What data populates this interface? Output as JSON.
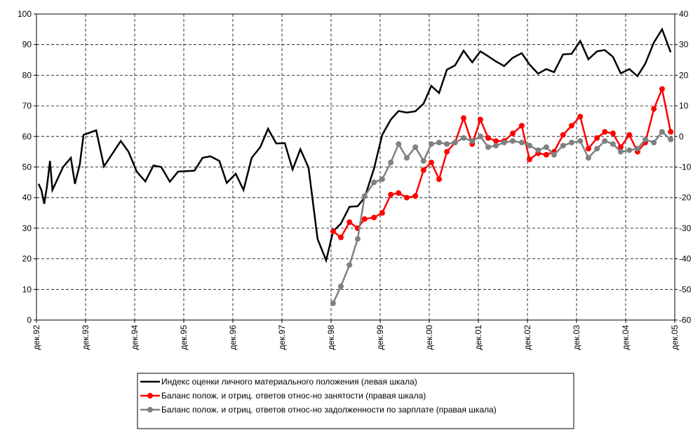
{
  "chart_data": {
    "type": "line",
    "xlim": [
      0,
      156
    ],
    "xticks": [
      {
        "value": 0,
        "label": "дек.92"
      },
      {
        "value": 12,
        "label": "дек.93"
      },
      {
        "value": 24,
        "label": "дек.94"
      },
      {
        "value": 36,
        "label": "дек.95"
      },
      {
        "value": 48,
        "label": "дек.96"
      },
      {
        "value": 60,
        "label": "дек.97"
      },
      {
        "value": 72,
        "label": "дек.98"
      },
      {
        "value": 84,
        "label": "дек.99"
      },
      {
        "value": 96,
        "label": "дек.00"
      },
      {
        "value": 108,
        "label": "дек.01"
      },
      {
        "value": 120,
        "label": "дек.02"
      },
      {
        "value": 132,
        "label": "дек.03"
      },
      {
        "value": 144,
        "label": "дек.04"
      },
      {
        "value": 156,
        "label": "дек.05"
      }
    ],
    "ylim": [
      0,
      100
    ],
    "yticks": [
      0,
      10,
      20,
      30,
      40,
      50,
      60,
      70,
      80,
      90,
      100
    ],
    "y2lim": [
      -60,
      40
    ],
    "y2ticks": [
      -60,
      -50,
      -40,
      -30,
      -20,
      -10,
      0,
      10,
      20,
      30,
      40
    ],
    "grid": true,
    "legend": "bottom",
    "series": [
      {
        "name": "Индекс оценки личного материального положения (левая шкала)",
        "color": "#000000",
        "axis": "y",
        "markers": false,
        "x": [
          0.5,
          1.2,
          1.9,
          2.6,
          3.3,
          3.9,
          6.5,
          8.4,
          9.4,
          10.6,
          11.5,
          14.6,
          16.5,
          20.6,
          22.5,
          24.5,
          26.6,
          28.6,
          30.5,
          32.6,
          34.6,
          38.6,
          40.6,
          42.5,
          44.7,
          46.5,
          48.7,
          50.6,
          52.6,
          54.7,
          56.6,
          58.6,
          60.7,
          62.6,
          64.5,
          66.5,
          68.7,
          70.8,
          72.5,
          74.4,
          76.5,
          78.5,
          80.2,
          82.5,
          84.5,
          86.6,
          88.5,
          90.5,
          92.6,
          94.6,
          96.5,
          98.4,
          100.3,
          102.3,
          104.4,
          106.5,
          108.5,
          110.4,
          112.3,
          114.3,
          116.4,
          118.6,
          120.5,
          122.6,
          124.6,
          126.5,
          128.7,
          130.8,
          132.9,
          134.9,
          137.0,
          138.9,
          140.9,
          142.8,
          144.9,
          146.9,
          148.8,
          150.9,
          152.9,
          155.0
        ],
        "values": [
          44.5,
          42.5,
          38,
          44,
          52,
          42.5,
          50,
          53,
          44.5,
          51,
          60.5,
          62,
          50.2,
          58.5,
          55,
          48.5,
          45.3,
          50.5,
          50,
          45.2,
          48.5,
          48.8,
          53,
          53.5,
          52,
          44.8,
          47.8,
          42.5,
          53,
          56.5,
          62.5,
          57.7,
          57.8,
          49.2,
          55.8,
          49.8,
          26.5,
          19.5,
          29,
          31.5,
          37,
          37.2,
          40,
          49.5,
          60.5,
          65.5,
          68.3,
          67.8,
          68.2,
          70.7,
          76.5,
          74.2,
          81.8,
          83.2,
          88,
          84.2,
          87.8,
          86.2,
          84.5,
          83,
          85.7,
          87.2,
          83.5,
          80.5,
          82,
          81,
          86.8,
          87,
          91.2,
          85.2,
          87.8,
          88.2,
          86,
          80.6,
          82,
          79.7,
          83.8,
          90.7,
          95,
          87.5
        ]
      },
      {
        "name": "Баланс полож. и отриц. ответов относ-но занятости (правая шкала)",
        "color": "#ff0000",
        "axis": "y2",
        "markers": true,
        "x": [
          72.5,
          74.4,
          76.5,
          78.5,
          80.2,
          82.5,
          84.5,
          86.6,
          88.5,
          90.5,
          92.6,
          94.6,
          96.5,
          98.4,
          100.3,
          102.3,
          104.4,
          106.5,
          108.5,
          110.4,
          112.3,
          114.3,
          116.4,
          118.6,
          120.5,
          122.6,
          124.6,
          126.5,
          128.7,
          130.8,
          132.9,
          134.9,
          137.0,
          138.9,
          140.9,
          142.8,
          144.9,
          146.9,
          148.8,
          150.9,
          152.9,
          155.0
        ],
        "values": [
          -31,
          -33,
          -28,
          -30,
          -27,
          -26.5,
          -25,
          -19,
          -18.5,
          -20,
          -19.5,
          -11,
          -8.5,
          -14,
          -5,
          -2,
          6,
          -2.5,
          5.5,
          -0.5,
          -1.5,
          -1.5,
          1,
          3.5,
          -7.5,
          -5.5,
          -6,
          -5,
          0.5,
          3.5,
          6.5,
          -4,
          -0.5,
          1.5,
          1,
          -3.5,
          0.5,
          -5,
          -2,
          9,
          15.5,
          1.5
        ]
      },
      {
        "name": "Баланс полож. и отриц. ответов относ-но задолженности по зарплате (правая шкала)",
        "color": "#808080",
        "axis": "y2",
        "markers": true,
        "x": [
          72.5,
          74.4,
          76.5,
          78.5,
          80.2,
          82.5,
          84.5,
          86.6,
          88.5,
          90.5,
          92.6,
          94.6,
          96.5,
          98.4,
          100.3,
          102.3,
          104.4,
          106.5,
          108.5,
          110.4,
          112.3,
          114.3,
          116.4,
          118.6,
          120.5,
          122.6,
          124.6,
          126.5,
          128.7,
          130.8,
          132.9,
          134.9,
          137.0,
          138.9,
          140.9,
          142.8,
          144.9,
          146.9,
          148.8,
          150.9,
          152.9,
          155.0
        ],
        "values": [
          -54.5,
          -49,
          -42,
          -33.5,
          -19.5,
          -15,
          -14,
          -8.5,
          -2.5,
          -7,
          -3.5,
          -8,
          -2.5,
          -2,
          -2.5,
          -2,
          -0.5,
          -1.5,
          0,
          -3.5,
          -3,
          -2,
          -1.5,
          -2,
          -3,
          -4.5,
          -3.5,
          -6,
          -3,
          -2,
          -1.5,
          -7,
          -4,
          -1.5,
          -2.5,
          -5,
          -4.5,
          -4,
          -1,
          -2,
          1.5,
          -1
        ]
      }
    ]
  }
}
